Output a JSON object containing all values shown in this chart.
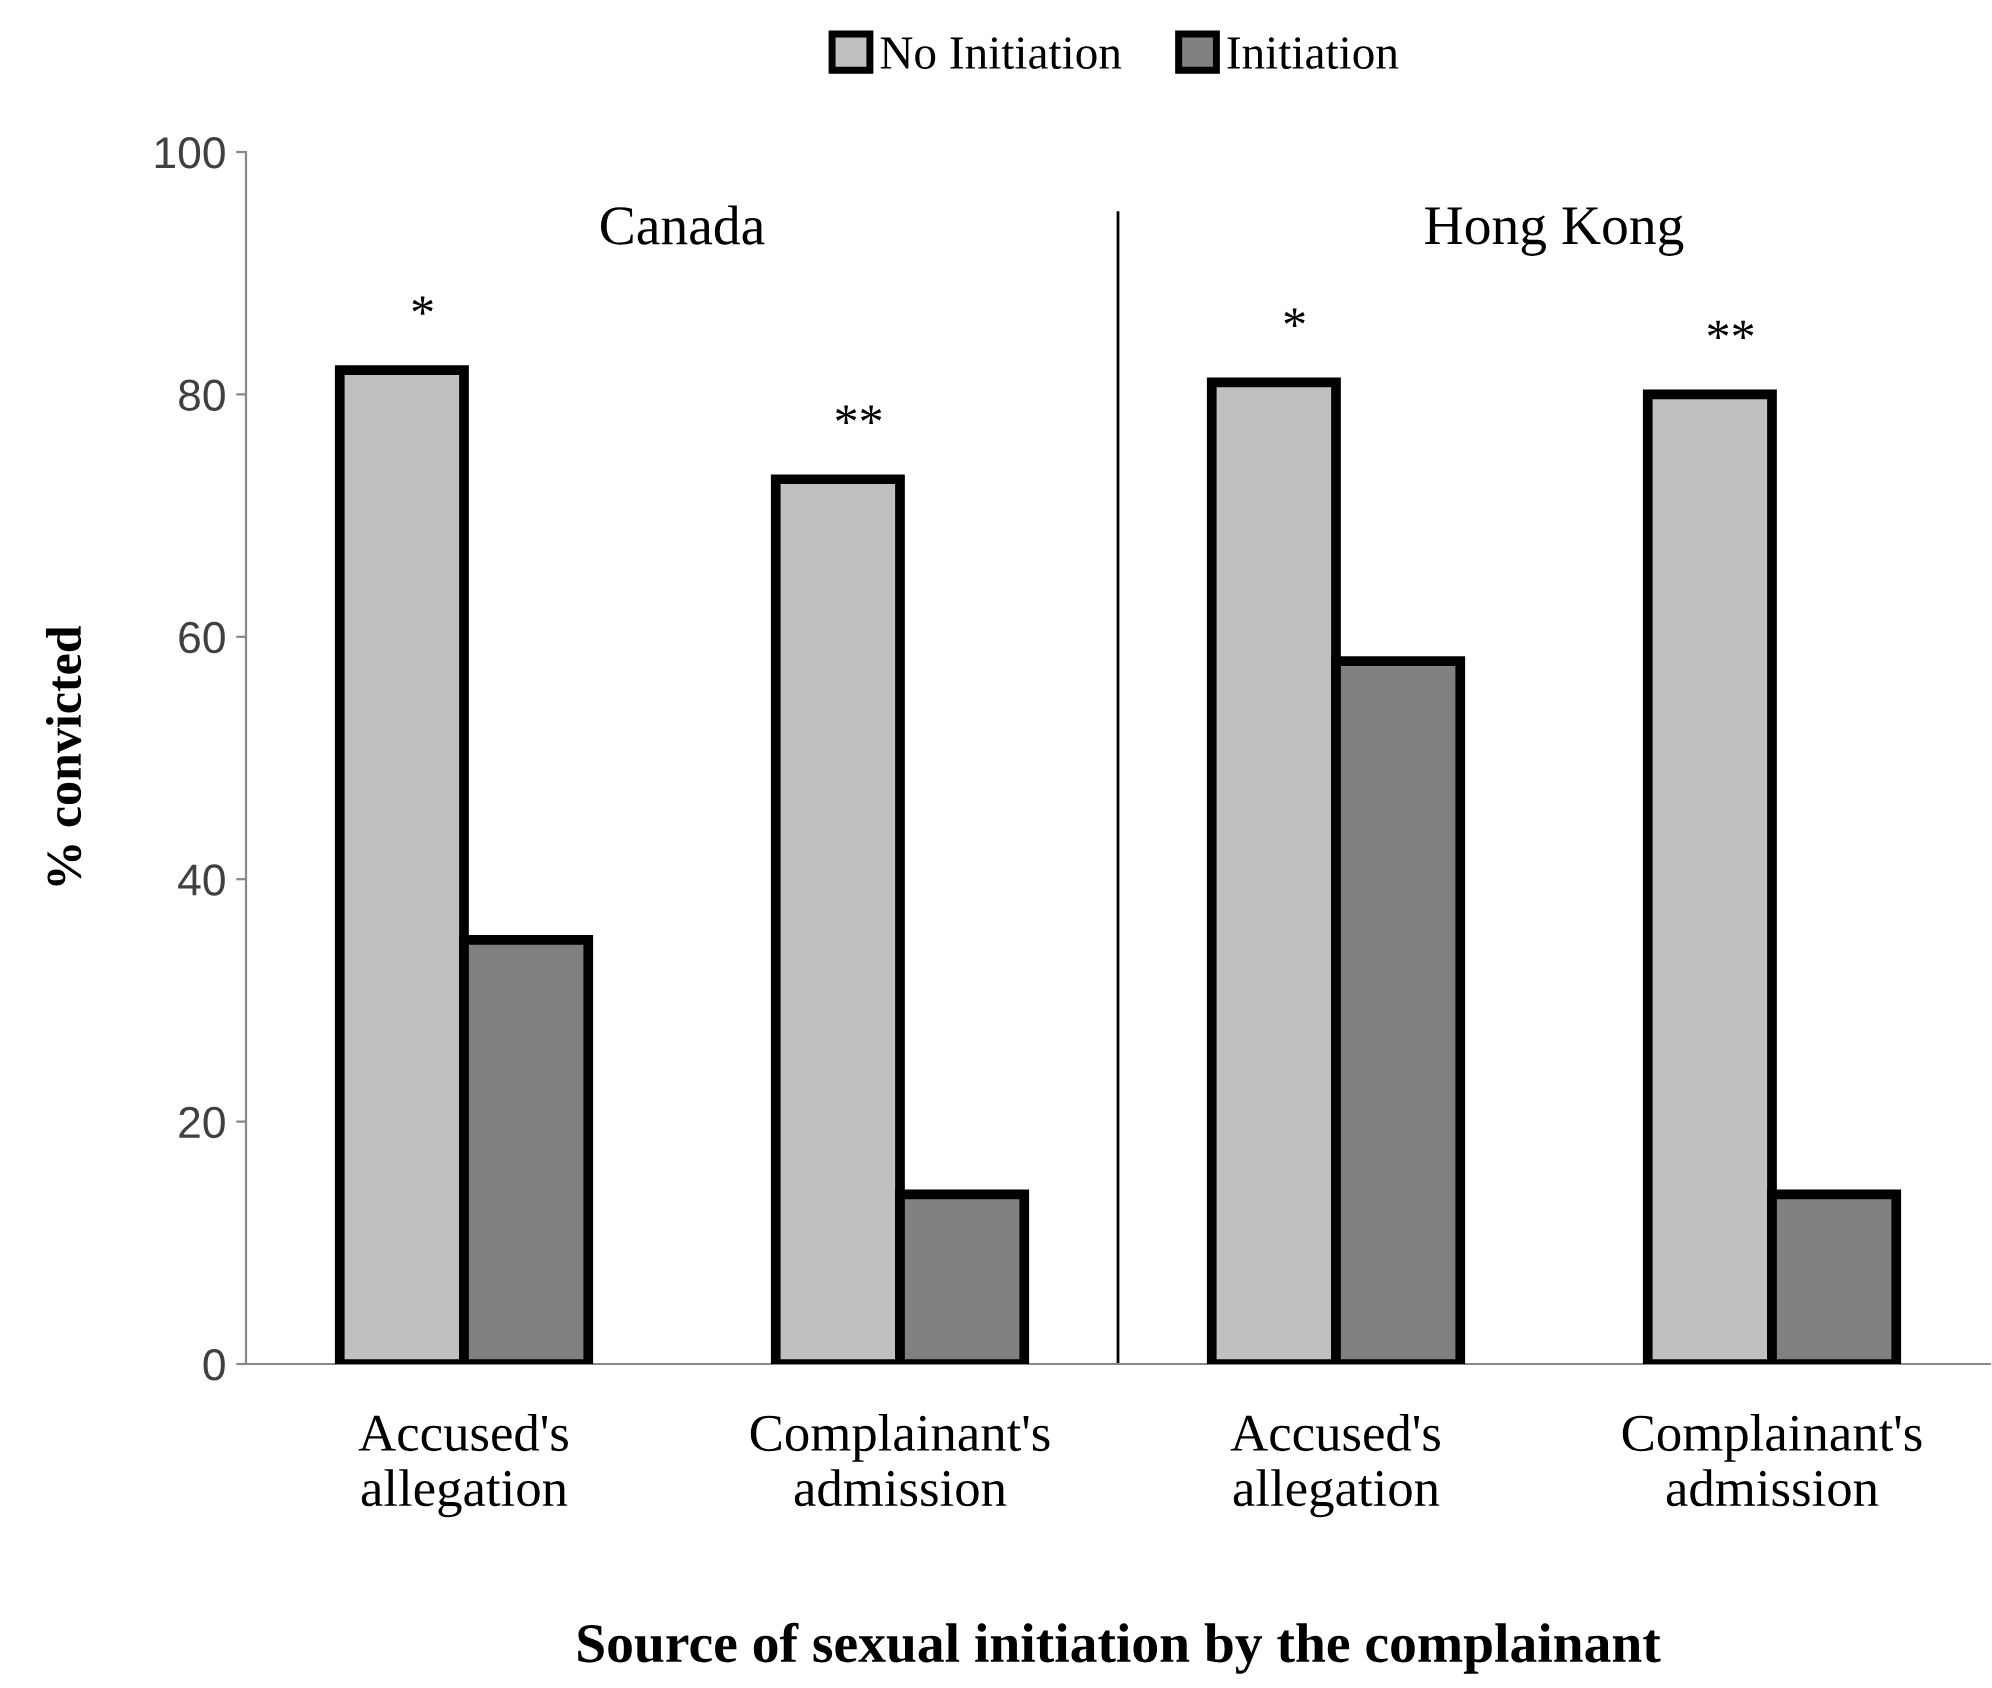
{
  "chart_data": {
    "type": "bar",
    "categories": [
      "Accused's\nallegation",
      "Complainant's\nadmission",
      "Accused's\nallegation",
      "Complainant's\nadmission"
    ],
    "series": [
      {
        "name": "No Initiation",
        "color": "#c0c0c0",
        "values": [
          82,
          73,
          81,
          80
        ]
      },
      {
        "name": "Initiation",
        "color": "#808080",
        "values": [
          35,
          14,
          58,
          14
        ]
      }
    ],
    "xlabel": "Source of sexual initiation by the complainant",
    "ylabel": "% convicted",
    "ylim": [
      0,
      100
    ],
    "yticks": [
      0,
      20,
      40,
      60,
      80,
      100
    ],
    "annotations": [
      "Canada",
      "Hong Kong",
      "*",
      "**",
      "*",
      "**"
    ],
    "legend": "top",
    "grid": false
  }
}
